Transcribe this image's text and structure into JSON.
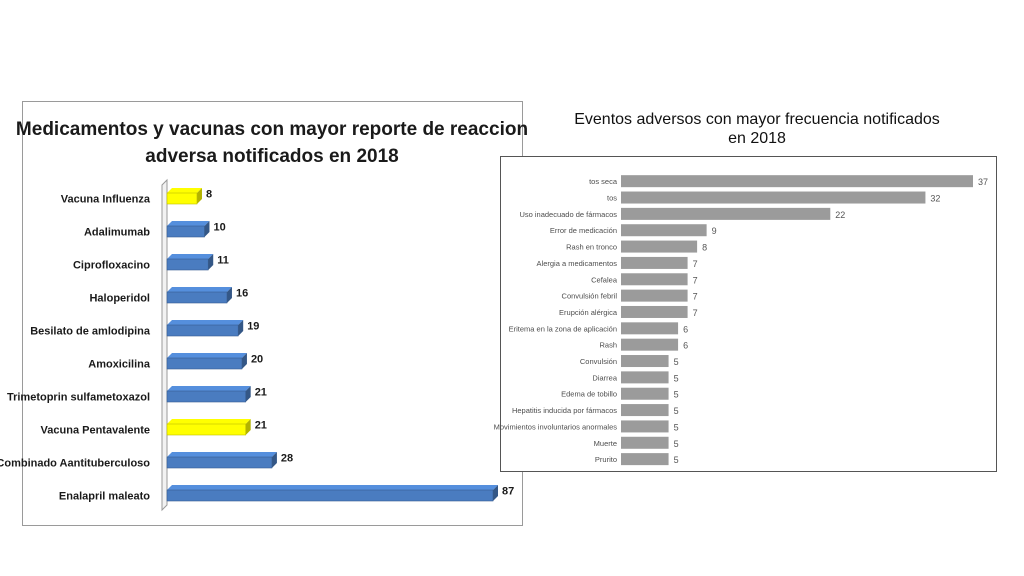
{
  "chart_data": [
    {
      "type": "bar",
      "orientation": "horizontal",
      "title": "Medicamentos y vacunas con mayor reporte de reaccion adversa notificados en 2018",
      "title_lines": [
        "Medicamentos y vacunas con mayor reporte de reaccion",
        "adversa notificados en 2018"
      ],
      "categories": [
        "Vacuna Influenza",
        "Adalimumab",
        "Ciprofloxacino",
        "Haloperidol",
        "Besilato de amlodipina",
        "Amoxicilina",
        "Trimetoprin sulfametoxazol",
        "Vacuna Pentavalente",
        "Combinado Aantituberculoso",
        "Enalapril maleato"
      ],
      "values": [
        8,
        10,
        11,
        16,
        19,
        20,
        21,
        21,
        28,
        87
      ],
      "highlighted": [
        "Vacuna Influenza",
        "Vacuna Pentavalente"
      ],
      "bar_color": "#4a7cc0",
      "highlight_color": "#ffff00",
      "grid": false,
      "legend": "none",
      "xlim": [
        0,
        87
      ]
    },
    {
      "type": "bar",
      "orientation": "horizontal",
      "title": "Eventos adversos con mayor frecuencia notificados en 2018",
      "title_lines": [
        "Eventos adversos con mayor frecuencia notificados",
        "en 2018"
      ],
      "categories": [
        "tos seca",
        "tos",
        "Uso inadecuado de fármacos",
        "Error de medicación",
        "Rash en tronco",
        "Alergia a medicamentos",
        "Cefalea",
        "Convulsión febril",
        "Erupción alérgica",
        "Eritema en la zona de aplicación",
        "Rash",
        "Convulsión",
        "Diarrea",
        "Edema de tobillo",
        "Hepatitis inducida por fármacos",
        "Movimientos involuntarios anormales",
        "Muerte",
        "Prurito"
      ],
      "values": [
        37,
        32,
        22,
        9,
        8,
        7,
        7,
        7,
        7,
        6,
        6,
        5,
        5,
        5,
        5,
        5,
        5,
        5
      ],
      "bar_color": "#9b9b9b",
      "grid": false,
      "legend": "none",
      "xlim": [
        0,
        37
      ]
    }
  ]
}
